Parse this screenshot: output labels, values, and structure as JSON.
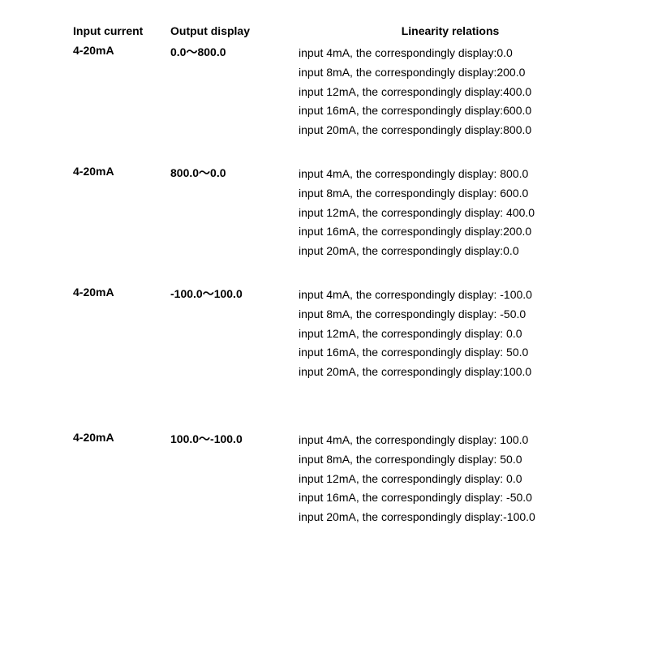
{
  "headers": {
    "col1": "Input current",
    "col2": "Output display",
    "col3": "Linearity relations"
  },
  "rows": [
    {
      "input": "4-20mA",
      "output": "0.0～800.0",
      "relations": [
        "input 4mA, the correspondingly display:0.0",
        "input 8mA, the correspondingly display:200.0",
        "input 12mA, the correspondingly display:400.0",
        "input 16mA, the correspondingly display:600.0",
        "input 20mA, the correspondingly display:800.0"
      ]
    },
    {
      "input": "4-20mA",
      "output": "800.0～0.0",
      "relations": [
        "input 4mA, the correspondingly display: 800.0",
        "input 8mA, the correspondingly display: 600.0",
        "input 12mA, the correspondingly display: 400.0",
        "input 16mA, the correspondingly display:200.0",
        "input 20mA, the correspondingly display:0.0"
      ]
    },
    {
      "input": "4-20mA",
      "output": "-100.0～100.0",
      "relations": [
        "input 4mA, the correspondingly display: -100.0",
        "input 8mA, the correspondingly display: -50.0",
        "input 12mA, the correspondingly display: 0.0",
        "input 16mA, the correspondingly display: 50.0",
        "input 20mA, the correspondingly display:100.0"
      ]
    },
    {
      "input": "4-20mA",
      "output": "100.0～-100.0",
      "relations": [
        "input 4mA, the correspondingly display: 100.0",
        "input 8mA, the correspondingly display: 50.0",
        "input 12mA, the correspondingly display: 0.0",
        "input 16mA, the correspondingly display: -50.0",
        "input 20mA, the correspondingly display:-100.0"
      ]
    }
  ]
}
